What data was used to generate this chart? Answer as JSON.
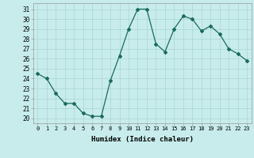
{
  "x": [
    0,
    1,
    2,
    3,
    4,
    5,
    6,
    7,
    8,
    9,
    10,
    11,
    12,
    13,
    14,
    15,
    16,
    17,
    18,
    19,
    20,
    21,
    22,
    23
  ],
  "y": [
    24.5,
    24.0,
    22.5,
    21.5,
    21.5,
    20.5,
    20.2,
    20.2,
    23.8,
    26.3,
    29.0,
    31.0,
    31.0,
    27.5,
    26.7,
    29.0,
    30.3,
    30.0,
    28.8,
    29.3,
    28.5,
    27.0,
    26.5,
    25.8
  ],
  "line_color": "#1a6b5a",
  "marker": "D",
  "markersize": 2.0,
  "linewidth": 0.9,
  "bg_color": "#c8ecec",
  "grid_color": "#aad4d4",
  "xlabel": "Humidex (Indice chaleur)",
  "xlabel_fontsize": 6.5,
  "yticks": [
    20,
    21,
    22,
    23,
    24,
    25,
    26,
    27,
    28,
    29,
    30,
    31
  ],
  "xticks": [
    0,
    1,
    2,
    3,
    4,
    5,
    6,
    7,
    8,
    9,
    10,
    11,
    12,
    13,
    14,
    15,
    16,
    17,
    18,
    19,
    20,
    21,
    22,
    23
  ],
  "ylim": [
    19.5,
    31.6
  ],
  "xlim": [
    -0.5,
    23.5
  ],
  "ytick_fontsize": 5.5,
  "xtick_fontsize": 5.0,
  "font_family": "monospace"
}
